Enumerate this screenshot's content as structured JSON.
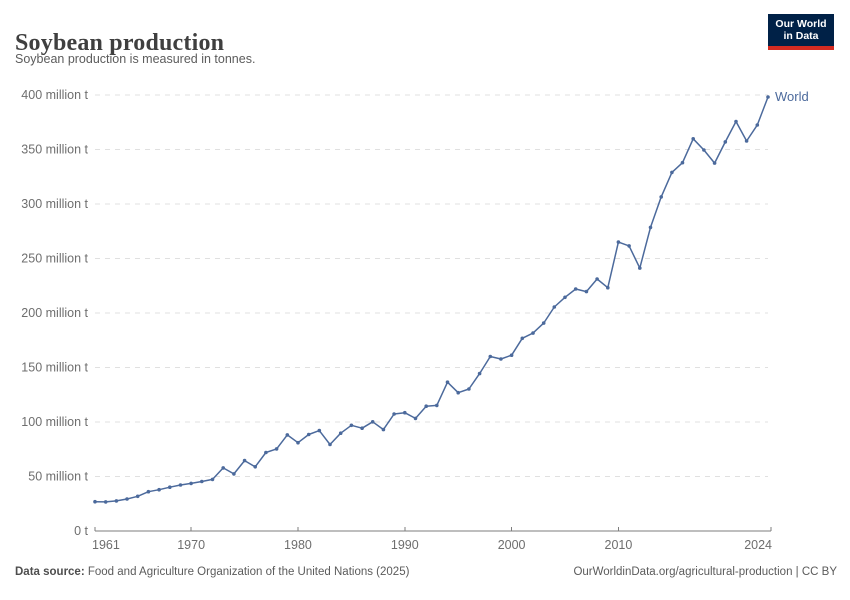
{
  "header": {
    "title": "Soybean production",
    "subtitle": "Soybean production is measured in tonnes.",
    "logo": {
      "line1": "Our World",
      "line2": "in Data",
      "bg_color": "#002147",
      "underline_color": "#d42b21"
    }
  },
  "chart_data": {
    "type": "line",
    "title": "Soybean production",
    "subtitle": "Soybean production is measured in tonnes.",
    "unit": "tonnes",
    "xlabel": "",
    "ylabel": "",
    "xlim": [
      1961,
      2024
    ],
    "ylim": [
      0,
      400
    ],
    "grid": "horizontal-dashed",
    "legend_position": "end-of-line-label",
    "xticks": {
      "values": [
        1961,
        1970,
        1980,
        1990,
        2000,
        2010,
        2024
      ],
      "labels": [
        "1961",
        "1970",
        "1980",
        "1990",
        "2000",
        "2010",
        "2024"
      ]
    },
    "yticks": {
      "values": [
        0,
        50,
        100,
        150,
        200,
        250,
        300,
        350,
        400
      ],
      "labels": [
        "0 t",
        "50 million t",
        "100 million t",
        "150 million t",
        "200 million t",
        "250 million t",
        "300 million t",
        "350 million t",
        "400 million t"
      ]
    },
    "series": [
      {
        "name": "World",
        "color": "#4c6a9c",
        "x": [
          1961,
          1962,
          1963,
          1964,
          1965,
          1966,
          1967,
          1968,
          1969,
          1970,
          1971,
          1972,
          1973,
          1974,
          1975,
          1976,
          1977,
          1978,
          1979,
          1980,
          1981,
          1982,
          1983,
          1984,
          1985,
          1986,
          1987,
          1988,
          1989,
          1990,
          1991,
          1992,
          1993,
          1994,
          1995,
          1996,
          1997,
          1998,
          1999,
          2000,
          2001,
          2002,
          2003,
          2004,
          2005,
          2006,
          2007,
          2008,
          2009,
          2010,
          2011,
          2012,
          2013,
          2014,
          2015,
          2016,
          2017,
          2018,
          2019,
          2020,
          2021,
          2022,
          2023,
          2024
        ],
        "values": [
          26.9,
          26.7,
          27.6,
          29.4,
          31.8,
          36.1,
          37.9,
          40.2,
          42.2,
          43.7,
          45.4,
          47.3,
          57.9,
          52.4,
          64.6,
          58.9,
          72.0,
          75.3,
          88.2,
          81.0,
          88.5,
          92.1,
          79.4,
          89.7,
          97.0,
          94.3,
          100.2,
          93.0,
          107.3,
          108.5,
          103.3,
          114.5,
          115.2,
          136.5,
          126.9,
          130.3,
          144.4,
          160.1,
          157.8,
          161.3,
          176.8,
          181.6,
          190.7,
          205.5,
          214.4,
          222.0,
          219.6,
          231.2,
          223.2,
          265.0,
          261.6,
          241.2,
          278.5,
          306.5,
          329.0,
          337.9,
          359.8,
          349.5,
          337.5,
          357.0,
          375.7,
          357.8,
          372.5,
          398.2
        ]
      }
    ]
  },
  "footer": {
    "source_label": "Data source:",
    "source_text": " Food and Agriculture Organization of the United Nations (2025)",
    "link_text": "OurWorldinData.org/agricultural-production | CC BY"
  }
}
